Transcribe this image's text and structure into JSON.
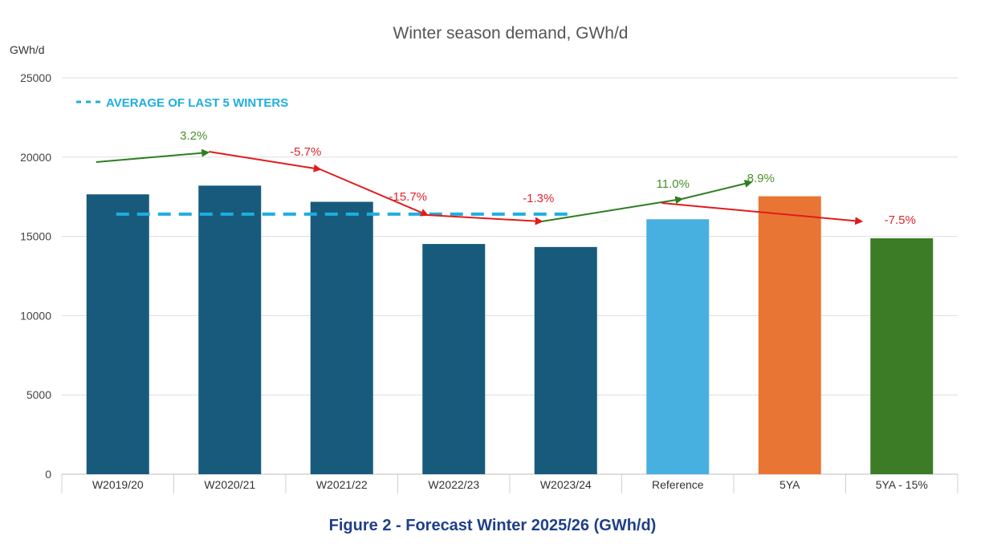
{
  "chart_data": {
    "type": "bar",
    "title": "Winter season demand, GWh/d",
    "ylabel": "GWh/d",
    "xlabel": "",
    "ylim": [
      0,
      25000
    ],
    "yticks": [
      0,
      5000,
      10000,
      15000,
      20000,
      25000
    ],
    "grid": true,
    "categories": [
      "W2019/20",
      "W2020/21",
      "W2021/22",
      "W2022/23",
      "W2023/24",
      "Reference",
      "5YA",
      "5YA - 15%"
    ],
    "values": [
      17650,
      18200,
      17180,
      14520,
      14330,
      16080,
      17530,
      14880
    ],
    "bar_colors": [
      "#175a7c",
      "#175a7c",
      "#175a7c",
      "#175a7c",
      "#175a7c",
      "#47b0e0",
      "#e87534",
      "#3c7c26"
    ],
    "average_line": {
      "label": "AVERAGE OF LAST 5 WINTERS",
      "value": 16400,
      "color": "#1eaee0"
    },
    "annotations": [
      {
        "text": "3.2%",
        "color": "#4a8f2a"
      },
      {
        "text": "-5.7%",
        "color": "#e0242b"
      },
      {
        "text": "-15.7%",
        "color": "#e0242b"
      },
      {
        "text": "-1.3%",
        "color": "#e0242b"
      },
      {
        "text": "11.0%",
        "color": "#4a8f2a"
      },
      {
        "text": "8.9%",
        "color": "#4a8f2a"
      },
      {
        "text": "-7.5%",
        "color": "#e0242b"
      }
    ],
    "arrow_colors": {
      "increase": "#2e7d21",
      "decrease": "#e01c1c"
    }
  },
  "caption": "Figure 2 - Forecast Winter 2025/26 (GWh/d)"
}
